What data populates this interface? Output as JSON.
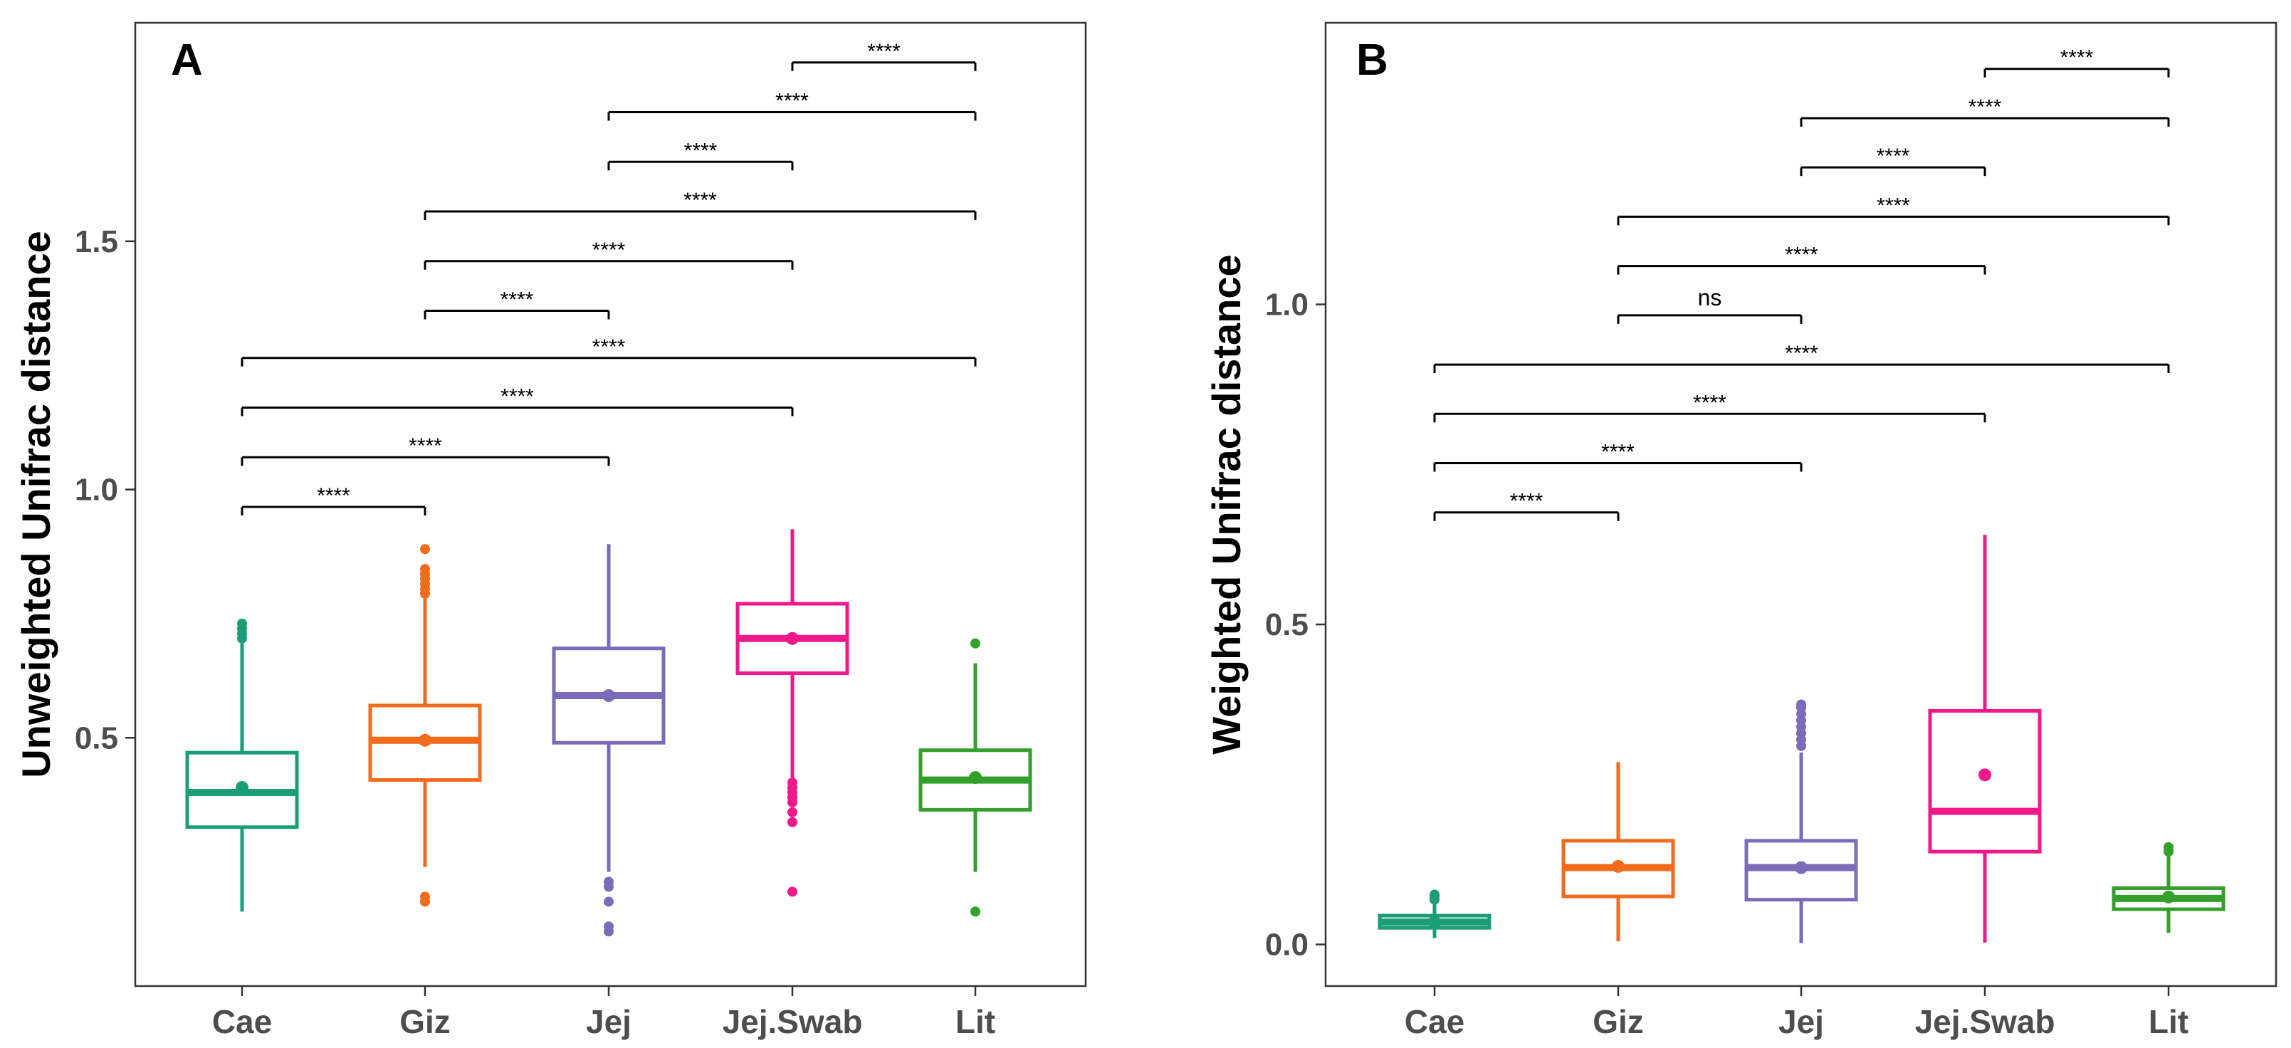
{
  "colors": {
    "Cae": "#1b9e77",
    "Giz": "#f26a1b",
    "Jej": "#7b6bb8",
    "Jej.Swab": "#f0198a",
    "Lit": "#33a02c",
    "frame": "#333333",
    "tick_text": "#4d4d4d",
    "bracket": "#000000"
  },
  "chart_data": [
    {
      "type": "box",
      "panel": "A",
      "title": "",
      "xlabel": "",
      "ylabel": "Unweighted Unifrac distance",
      "ylim": [
        0.0,
        1.94
      ],
      "yticks": [
        {
          "value": 0.5,
          "label": "0.5"
        },
        {
          "value": 1.0,
          "label": "1.0"
        },
        {
          "value": 1.5,
          "label": "1.5"
        }
      ],
      "categories": [
        "Cae",
        "Giz",
        "Jej",
        "Jej.Swab",
        "Lit"
      ],
      "boxes": [
        {
          "group": "Cae",
          "whisker_low": 0.15,
          "q1": 0.32,
          "median": 0.39,
          "q3": 0.47,
          "whisker_high": 0.69,
          "mean": 0.4,
          "outliers": [
            0.7,
            0.71,
            0.72,
            0.73
          ]
        },
        {
          "group": "Giz",
          "whisker_low": 0.24,
          "q1": 0.415,
          "median": 0.495,
          "q3": 0.565,
          "whisker_high": 0.78,
          "mean": 0.495,
          "outliers": [
            0.17,
            0.18,
            0.79,
            0.8,
            0.81,
            0.82,
            0.83,
            0.84,
            0.88
          ]
        },
        {
          "group": "Jej",
          "whisker_low": 0.23,
          "q1": 0.49,
          "median": 0.585,
          "q3": 0.68,
          "whisker_high": 0.89,
          "mean": 0.585,
          "outliers": [
            0.11,
            0.12,
            0.17,
            0.2,
            0.21
          ]
        },
        {
          "group": "Jej.Swab",
          "whisker_low": 0.42,
          "q1": 0.63,
          "median": 0.7,
          "q3": 0.77,
          "whisker_high": 0.92,
          "mean": 0.7,
          "outliers": [
            0.19,
            0.33,
            0.35,
            0.37,
            0.38,
            0.39,
            0.4,
            0.41
          ]
        },
        {
          "group": "Lit",
          "whisker_low": 0.23,
          "q1": 0.355,
          "median": 0.415,
          "q3": 0.475,
          "whisker_high": 0.65,
          "mean": 0.42,
          "outliers": [
            0.15,
            0.69
          ]
        }
      ],
      "comparisons": [
        {
          "from": "Cae",
          "to": "Giz",
          "y": 0.965,
          "label": "****"
        },
        {
          "from": "Cae",
          "to": "Jej",
          "y": 1.065,
          "label": "****"
        },
        {
          "from": "Cae",
          "to": "Jej.Swab",
          "y": 1.165,
          "label": "****"
        },
        {
          "from": "Cae",
          "to": "Lit",
          "y": 1.265,
          "label": "****"
        },
        {
          "from": "Giz",
          "to": "Jej",
          "y": 1.36,
          "label": "****"
        },
        {
          "from": "Giz",
          "to": "Jej.Swab",
          "y": 1.46,
          "label": "****"
        },
        {
          "from": "Giz",
          "to": "Lit",
          "y": 1.56,
          "label": "****"
        },
        {
          "from": "Jej",
          "to": "Jej.Swab",
          "y": 1.66,
          "label": "****"
        },
        {
          "from": "Jej",
          "to": "Lit",
          "y": 1.76,
          "label": "****"
        },
        {
          "from": "Jej.Swab",
          "to": "Lit",
          "y": 1.86,
          "label": "****"
        }
      ]
    },
    {
      "type": "box",
      "panel": "B",
      "title": "",
      "xlabel": "",
      "ylabel": "Weighted Unifrac distance",
      "ylim": [
        -0.065,
        1.44
      ],
      "yticks": [
        {
          "value": 0.0,
          "label": "0.0"
        },
        {
          "value": 0.5,
          "label": "0.5"
        },
        {
          "value": 1.0,
          "label": "1.0"
        }
      ],
      "categories": [
        "Cae",
        "Giz",
        "Jej",
        "Jej.Swab",
        "Lit"
      ],
      "boxes": [
        {
          "group": "Cae",
          "whisker_low": 0.01,
          "q1": 0.026,
          "median": 0.035,
          "q3": 0.045,
          "whisker_high": 0.065,
          "mean": 0.035,
          "outliers": [
            0.07,
            0.075,
            0.078
          ]
        },
        {
          "group": "Giz",
          "whisker_low": 0.005,
          "q1": 0.075,
          "median": 0.12,
          "q3": 0.162,
          "whisker_high": 0.285,
          "mean": 0.122,
          "outliers": []
        },
        {
          "group": "Jej",
          "whisker_low": 0.002,
          "q1": 0.07,
          "median": 0.12,
          "q3": 0.162,
          "whisker_high": 0.3,
          "mean": 0.12,
          "outliers": [
            0.31,
            0.32,
            0.33,
            0.34,
            0.35,
            0.36,
            0.37,
            0.375
          ]
        },
        {
          "group": "Jej.Swab",
          "whisker_low": 0.003,
          "q1": 0.145,
          "median": 0.208,
          "q3": 0.365,
          "whisker_high": 0.64,
          "mean": 0.265,
          "outliers": []
        },
        {
          "group": "Lit",
          "whisker_low": 0.018,
          "q1": 0.055,
          "median": 0.072,
          "q3": 0.088,
          "whisker_high": 0.14,
          "mean": 0.074,
          "outliers": [
            0.145,
            0.152
          ]
        }
      ],
      "comparisons": [
        {
          "from": "Cae",
          "to": "Giz",
          "y": 0.675,
          "label": "****"
        },
        {
          "from": "Cae",
          "to": "Jej",
          "y": 0.752,
          "label": "****"
        },
        {
          "from": "Cae",
          "to": "Jej.Swab",
          "y": 0.829,
          "label": "****"
        },
        {
          "from": "Cae",
          "to": "Lit",
          "y": 0.906,
          "label": "****"
        },
        {
          "from": "Giz",
          "to": "Jej",
          "y": 0.983,
          "label": "ns"
        },
        {
          "from": "Giz",
          "to": "Jej.Swab",
          "y": 1.06,
          "label": "****"
        },
        {
          "from": "Giz",
          "to": "Lit",
          "y": 1.137,
          "label": "****"
        },
        {
          "from": "Jej",
          "to": "Jej.Swab",
          "y": 1.214,
          "label": "****"
        },
        {
          "from": "Jej",
          "to": "Lit",
          "y": 1.291,
          "label": "****"
        },
        {
          "from": "Jej.Swab",
          "to": "Lit",
          "y": 1.368,
          "label": "****"
        }
      ]
    }
  ]
}
